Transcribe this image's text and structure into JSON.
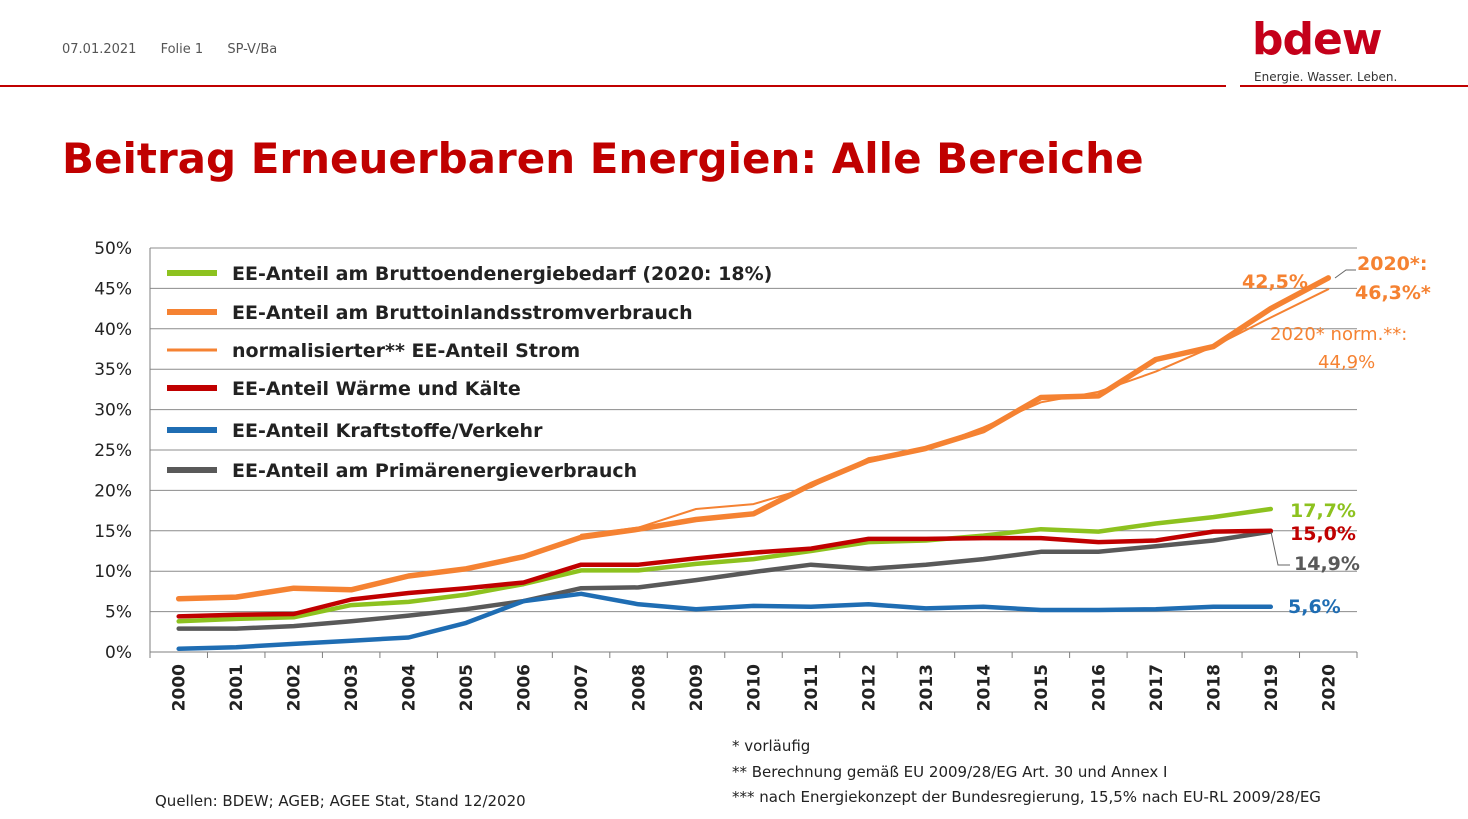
{
  "header": {
    "date": "07.01.2021",
    "slide": "Folie 1",
    "ref": "SP-V/Ba",
    "logo": "bdew",
    "tagline": "Energie. Wasser. Leben."
  },
  "title": "Beitrag Erneuerbaren Energien: Alle Bereiche",
  "chart_data": {
    "type": "line",
    "x": [
      2000,
      2001,
      2002,
      2003,
      2004,
      2005,
      2006,
      2007,
      2008,
      2009,
      2010,
      2011,
      2012,
      2013,
      2014,
      2015,
      2016,
      2017,
      2018,
      2019,
      2020
    ],
    "ylim": [
      0,
      50
    ],
    "yticks": [
      "0%",
      "5%",
      "10%",
      "15%",
      "20%",
      "25%",
      "30%",
      "35%",
      "40%",
      "45%",
      "50%"
    ],
    "grid": true,
    "legend_placement": "top-left",
    "series": [
      {
        "name": "EE-Anteil am Bruttoendenergiebedarf (2020: 18%)",
        "color": "#8dc21f",
        "values": [
          3.8,
          4.1,
          4.3,
          5.8,
          6.2,
          7.1,
          8.4,
          10.1,
          10.1,
          10.9,
          11.5,
          12.5,
          13.6,
          13.8,
          14.4,
          15.2,
          14.9,
          15.9,
          16.7,
          17.7,
          null
        ]
      },
      {
        "name": "EE-Anteil am Bruttoinlandsstromverbrauch",
        "color": "#f58232",
        "values": [
          6.6,
          6.8,
          7.9,
          7.7,
          9.4,
          10.3,
          11.8,
          14.2,
          15.2,
          16.4,
          17.1,
          20.7,
          23.7,
          25.2,
          27.4,
          31.5,
          31.7,
          36.2,
          37.8,
          42.5,
          46.3
        ]
      },
      {
        "name": "normalisierter** EE-Anteil Strom",
        "color": "#f58232",
        "values": [
          null,
          null,
          null,
          null,
          null,
          null,
          null,
          14.5,
          15.4,
          17.7,
          18.3,
          20.4,
          24.0,
          25.1,
          27.8,
          30.9,
          32.2,
          34.7,
          37.8,
          41.4,
          44.9
        ]
      },
      {
        "name": "EE-Anteil Wärme und Kälte",
        "color": "#c00000",
        "values": [
          4.4,
          4.6,
          4.7,
          6.5,
          7.3,
          7.9,
          8.6,
          10.8,
          10.8,
          11.6,
          12.3,
          12.8,
          14.0,
          14.0,
          14.1,
          14.1,
          13.6,
          13.8,
          14.9,
          15.0,
          null
        ]
      },
      {
        "name": "EE-Anteil Kraftstoffe/Verkehr",
        "color": "#1f6db3",
        "values": [
          0.4,
          0.6,
          1.0,
          1.4,
          1.8,
          3.6,
          6.3,
          7.2,
          5.9,
          5.3,
          5.7,
          5.6,
          5.9,
          5.4,
          5.6,
          5.2,
          5.2,
          5.3,
          5.6,
          5.6,
          null
        ]
      },
      {
        "name": "EE-Anteil am Primärenergieverbrauch",
        "color": "#595959",
        "values": [
          2.9,
          2.9,
          3.2,
          3.8,
          4.5,
          5.3,
          6.3,
          7.9,
          8.0,
          8.9,
          9.9,
          10.8,
          10.3,
          10.8,
          11.5,
          12.4,
          12.4,
          13.1,
          13.8,
          14.9,
          null
        ]
      }
    ],
    "annotations": [
      {
        "text": "42,5%",
        "color": "#f58232"
      },
      {
        "text": "2020*:",
        "color": "#f58232"
      },
      {
        "text": "46,3%*",
        "color": "#f58232"
      },
      {
        "text": "2020* norm.**:",
        "color": "#f58232"
      },
      {
        "text": "44,9%",
        "color": "#f58232"
      },
      {
        "text": "17,7%",
        "color": "#8dc21f"
      },
      {
        "text": "15,0%",
        "color": "#c00000"
      },
      {
        "text": "14,9%",
        "color": "#595959"
      },
      {
        "text": "5,6%",
        "color": "#1f6db3"
      }
    ]
  },
  "footnotes": {
    "note1": "* vorläufig",
    "note2": "** Berechnung gemäß EU 2009/28/EG Art. 30 und Annex I",
    "note3": "***  nach Energiekonzept der Bundesregierung, 15,5% nach EU-RL 2009/28/EG",
    "sources": "Quellen: BDEW; AGEB; AGEE Stat, Stand 12/2020"
  }
}
